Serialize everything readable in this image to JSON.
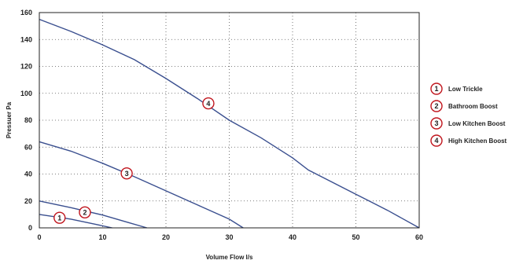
{
  "chart_data": {
    "type": "line",
    "xlabel": "Volume Flow l/s",
    "ylabel": "Pressuer Pa",
    "xlim": [
      0,
      60
    ],
    "ylim": [
      0,
      160
    ],
    "xticks": [
      0,
      10,
      20,
      30,
      40,
      50,
      60
    ],
    "yticks": [
      0,
      20,
      40,
      60,
      80,
      100,
      120,
      140,
      160
    ],
    "grid": "dotted",
    "legend_position": "right",
    "line_color": "#3a4f8f",
    "marker_color": "#c0141c",
    "series": [
      {
        "name": "Low Trickle",
        "marker": "1",
        "marker_at": [
          3.2,
          7.5
        ],
        "points": [
          [
            0,
            10
          ],
          [
            5,
            6.5
          ],
          [
            9,
            2.5
          ],
          [
            11.5,
            0
          ]
        ]
      },
      {
        "name": "Bathroom Boost",
        "marker": "2",
        "marker_at": [
          7.2,
          11.5
        ],
        "points": [
          [
            0,
            20
          ],
          [
            5,
            15
          ],
          [
            10,
            9.5
          ],
          [
            14,
            4
          ],
          [
            17,
            0
          ]
        ]
      },
      {
        "name": "Low Kitchen Boost",
        "marker": "3",
        "marker_at": [
          13.8,
          40.5
        ],
        "points": [
          [
            0,
            64
          ],
          [
            5,
            57
          ],
          [
            10,
            48
          ],
          [
            15,
            38
          ],
          [
            20,
            27.5
          ],
          [
            25,
            17
          ],
          [
            30,
            6.5
          ],
          [
            32.2,
            0
          ]
        ]
      },
      {
        "name": "High Kitchen Boost",
        "marker": "4",
        "marker_at": [
          26.7,
          92.5
        ],
        "points": [
          [
            0,
            155
          ],
          [
            5,
            146
          ],
          [
            10,
            136
          ],
          [
            15,
            125
          ],
          [
            20,
            111
          ],
          [
            25,
            96
          ],
          [
            30,
            80
          ],
          [
            35,
            67
          ],
          [
            40,
            52
          ],
          [
            42.5,
            43
          ],
          [
            50,
            25
          ],
          [
            55,
            13
          ],
          [
            60,
            0
          ]
        ]
      }
    ]
  }
}
